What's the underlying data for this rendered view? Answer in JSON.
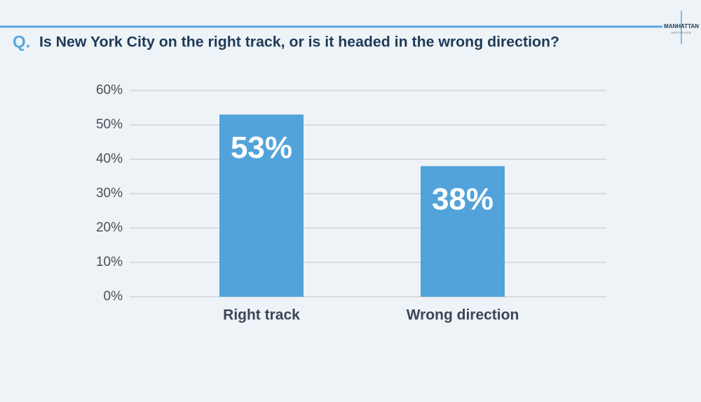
{
  "logo": {
    "name": "MANHATTAN",
    "subtitle": "INSTITUTE"
  },
  "chart_data": {
    "type": "bar",
    "title_prefix": "Q.",
    "title": "Is New York City on the right track, or is it headed in the wrong direction?",
    "categories": [
      "Right track",
      "Wrong direction"
    ],
    "values": [
      53,
      38
    ],
    "value_labels": [
      "53%",
      "38%"
    ],
    "color": "#52a3d9",
    "ylim": [
      0,
      60
    ],
    "yticks": [
      {
        "value": 0,
        "label": "0%"
      },
      {
        "value": 10,
        "label": "10%"
      },
      {
        "value": 20,
        "label": "20%"
      },
      {
        "value": 30,
        "label": "30%"
      },
      {
        "value": 40,
        "label": "40%"
      },
      {
        "value": 50,
        "label": "50%"
      },
      {
        "value": 60,
        "label": "60%"
      }
    ],
    "grid": true
  }
}
